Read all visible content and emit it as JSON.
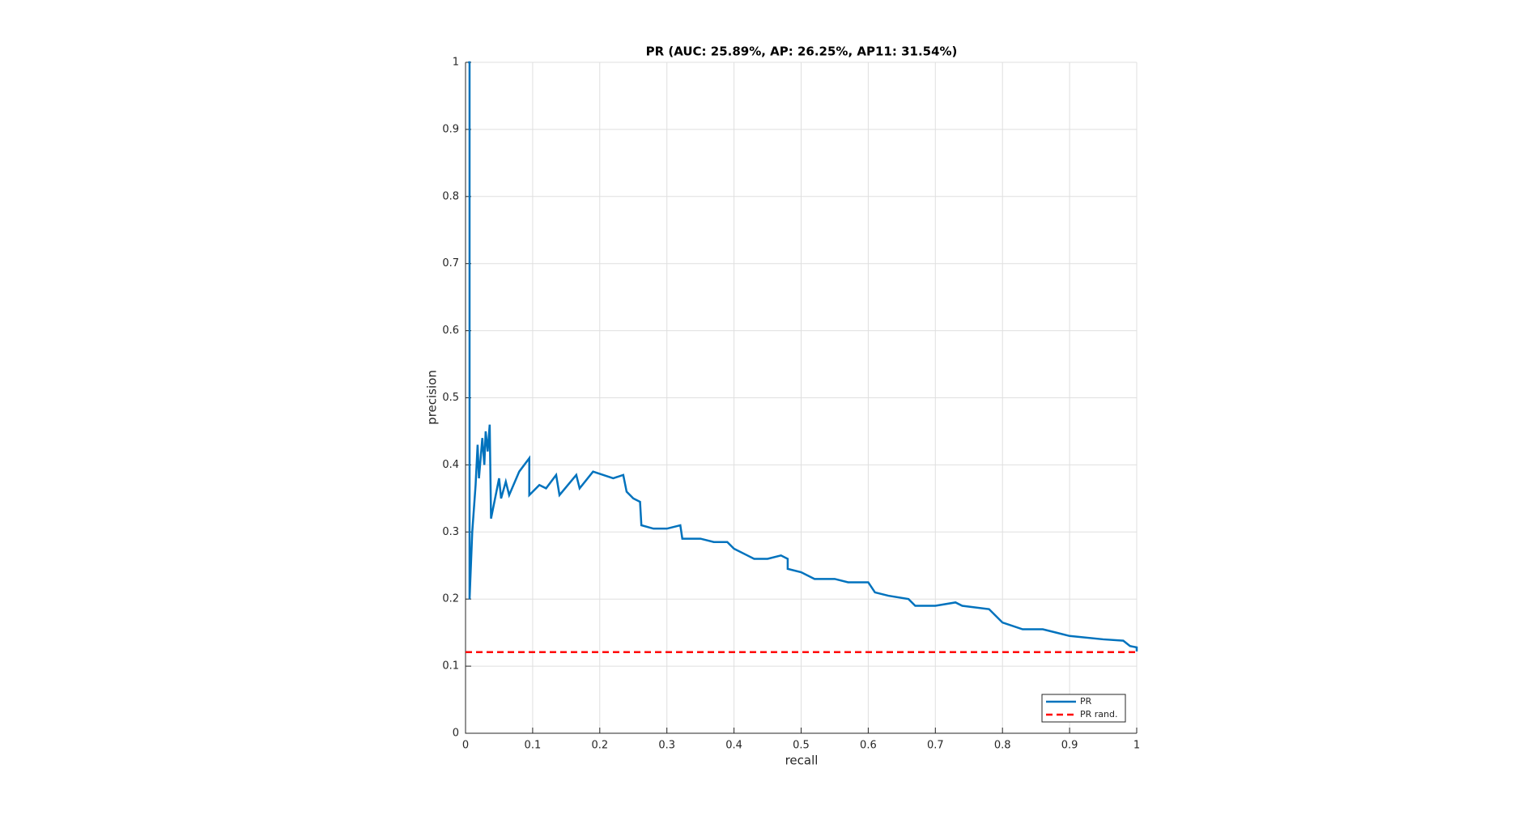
{
  "chart_data": {
    "type": "line",
    "title": "PR (AUC: 25.89%, AP: 26.25%, AP11: 31.54%)",
    "x_label": "recall",
    "y_label": "precision",
    "xlim": [
      0,
      1
    ],
    "ylim": [
      0,
      1
    ],
    "xticks": [
      0,
      0.1,
      0.2,
      0.3,
      0.4,
      0.5,
      0.6,
      0.7,
      0.8,
      0.9,
      1
    ],
    "yticks": [
      0,
      0.1,
      0.2,
      0.3,
      0.4,
      0.5,
      0.6,
      0.7,
      0.8,
      0.9,
      1
    ],
    "grid": true,
    "legend": "lower right",
    "series": [
      {
        "name": "PR",
        "color": "#0072bd",
        "linestyle": "solid",
        "x": [
          0.004,
          0.006,
          0.006,
          0.01,
          0.015,
          0.018,
          0.02,
          0.025,
          0.028,
          0.03,
          0.033,
          0.036,
          0.038,
          0.05,
          0.053,
          0.06,
          0.065,
          0.08,
          0.095,
          0.095,
          0.11,
          0.12,
          0.135,
          0.14,
          0.165,
          0.17,
          0.19,
          0.22,
          0.235,
          0.24,
          0.25,
          0.26,
          0.262,
          0.28,
          0.3,
          0.32,
          0.323,
          0.35,
          0.37,
          0.39,
          0.4,
          0.42,
          0.43,
          0.45,
          0.47,
          0.48,
          0.48,
          0.5,
          0.52,
          0.55,
          0.57,
          0.6,
          0.61,
          0.63,
          0.66,
          0.67,
          0.7,
          0.73,
          0.74,
          0.78,
          0.8,
          0.83,
          0.86,
          0.88,
          0.9,
          0.95,
          0.98,
          0.99,
          1.0,
          1.0
        ],
        "values": [
          1.0,
          1.0,
          0.2,
          0.3,
          0.37,
          0.43,
          0.38,
          0.44,
          0.4,
          0.45,
          0.42,
          0.46,
          0.32,
          0.38,
          0.35,
          0.375,
          0.355,
          0.39,
          0.41,
          0.355,
          0.37,
          0.365,
          0.385,
          0.355,
          0.385,
          0.365,
          0.39,
          0.38,
          0.385,
          0.36,
          0.35,
          0.345,
          0.31,
          0.305,
          0.305,
          0.31,
          0.29,
          0.29,
          0.285,
          0.285,
          0.275,
          0.265,
          0.26,
          0.26,
          0.265,
          0.26,
          0.245,
          0.24,
          0.23,
          0.23,
          0.225,
          0.225,
          0.21,
          0.205,
          0.2,
          0.19,
          0.19,
          0.195,
          0.19,
          0.185,
          0.165,
          0.155,
          0.155,
          0.15,
          0.145,
          0.14,
          0.138,
          0.13,
          0.128,
          0.122
        ]
      },
      {
        "name": "PR rand.",
        "color": "#ff0000",
        "linestyle": "dashed",
        "x": [
          0,
          1
        ],
        "values": [
          0.121,
          0.121
        ]
      }
    ]
  }
}
